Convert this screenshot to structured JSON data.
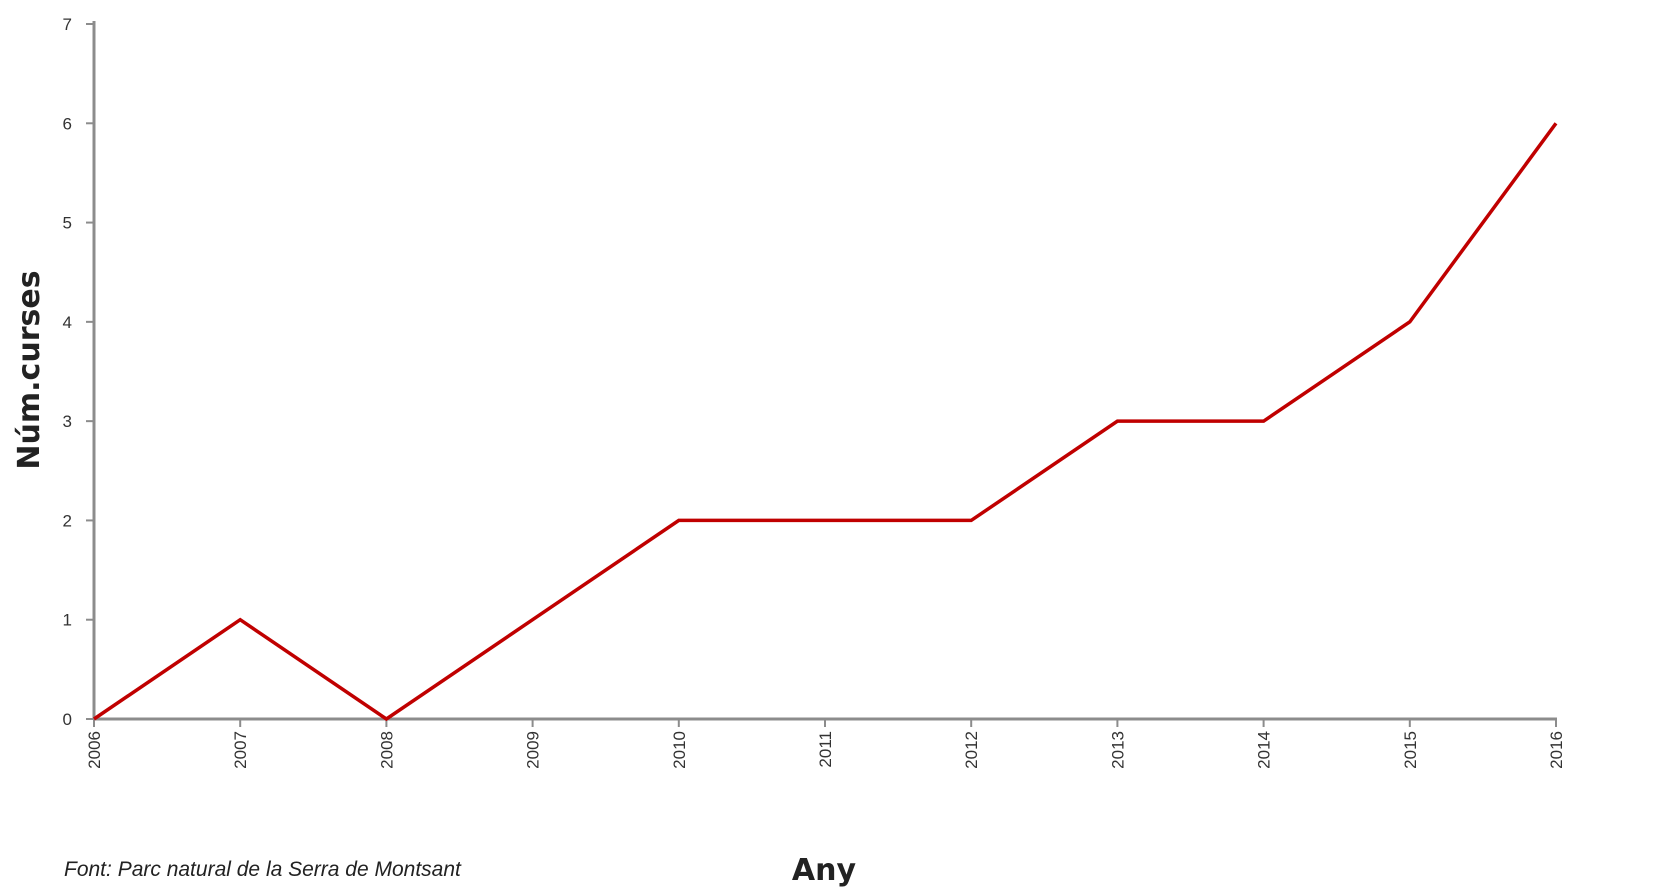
{
  "chart_data": {
    "type": "line",
    "title": "",
    "xlabel": "Any",
    "ylabel": "Núm.curses",
    "x": [
      "2006",
      "2007",
      "2008",
      "2009",
      "2010",
      "2011",
      "2012",
      "2013",
      "2014",
      "2015",
      "2016"
    ],
    "series": [
      {
        "values": [
          0,
          1,
          0,
          1,
          2,
          2,
          2,
          3,
          3,
          4,
          6
        ],
        "color": "#c00000"
      }
    ],
    "ylim": [
      0,
      7
    ],
    "yticks": [
      0,
      1,
      2,
      3,
      4,
      5,
      6,
      7
    ],
    "grid": false,
    "legend": "none"
  },
  "source_note": "Font: Parc natural de la Serra de Montsant"
}
